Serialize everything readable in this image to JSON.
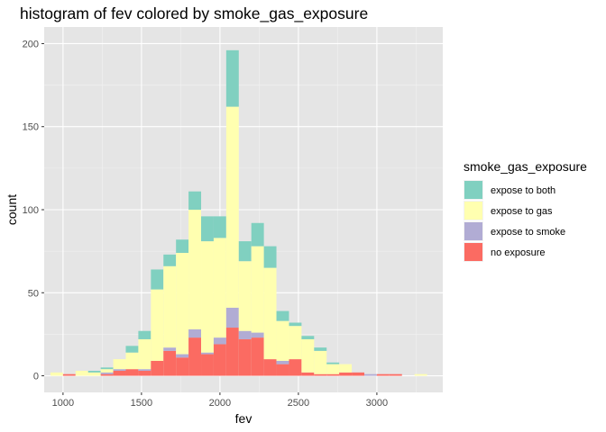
{
  "chart_data": {
    "type": "bar",
    "subtype": "stacked-histogram",
    "title": "histogram of fev colored by smoke_gas_exposure",
    "xlabel": "fev",
    "ylabel": "count",
    "xlim": [
      880,
      3420
    ],
    "ylim": [
      -10,
      210
    ],
    "x_ticks": [
      1000,
      1500,
      2000,
      2500,
      3000
    ],
    "y_ticks": [
      0,
      50,
      100,
      150,
      200
    ],
    "grid": true,
    "legend_position": "right",
    "legend_title": "smoke_gas_exposure",
    "bin_width": 80,
    "bins_center": [
      960,
      1040,
      1120,
      1200,
      1280,
      1360,
      1440,
      1520,
      1600,
      1680,
      1760,
      1840,
      1920,
      2000,
      2080,
      2160,
      2240,
      2320,
      2400,
      2480,
      2560,
      2640,
      2720,
      2800,
      2880,
      2960,
      3040,
      3120,
      3200,
      3280
    ],
    "series": [
      {
        "name": "no exposure",
        "color": "#fb6b62",
        "values": [
          0,
          1,
          0,
          0,
          1,
          3,
          4,
          3,
          9,
          15,
          11,
          23,
          13,
          19,
          29,
          22,
          23,
          10,
          7,
          10,
          2,
          1,
          1,
          2,
          2,
          0,
          1,
          1,
          0,
          0
        ]
      },
      {
        "name": "expose to smoke",
        "color": "#b1acd4",
        "values": [
          0,
          0,
          0,
          0,
          1,
          1,
          0,
          1,
          0,
          2,
          2,
          5,
          1,
          4,
          12,
          5,
          3,
          0,
          2,
          0,
          0,
          0,
          0,
          0,
          0,
          1,
          0,
          0,
          0,
          0
        ]
      },
      {
        "name": "expose to gas",
        "color": "#ffffb0",
        "values": [
          2,
          0,
          3,
          2,
          2,
          6,
          10,
          18,
          43,
          49,
          61,
          72,
          67,
          60,
          121,
          42,
          52,
          55,
          24,
          20,
          20,
          14,
          6,
          5,
          0,
          0,
          0,
          0,
          0,
          1
        ]
      },
      {
        "name": "expose to both",
        "color": "#80d0c0",
        "values": [
          0,
          0,
          0,
          1,
          1,
          0,
          4,
          5,
          12,
          7,
          8,
          11,
          15,
          13,
          34,
          12,
          14,
          13,
          6,
          2,
          2,
          2,
          1,
          0,
          0,
          0,
          0,
          0,
          0,
          0
        ]
      }
    ],
    "legend_order": [
      "expose to both",
      "expose to gas",
      "expose to smoke",
      "no exposure"
    ]
  }
}
